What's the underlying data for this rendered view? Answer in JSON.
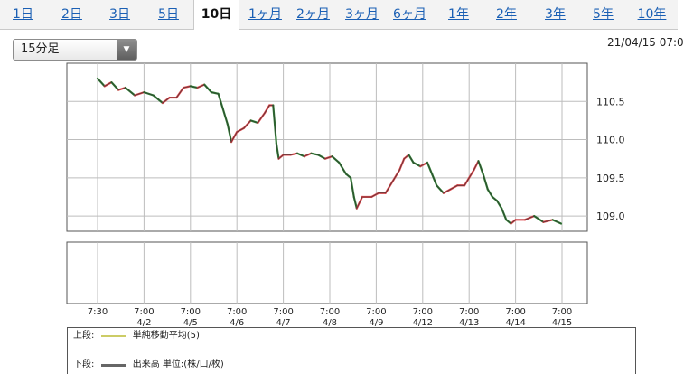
{
  "tabs": [
    {
      "label": "1日"
    },
    {
      "label": "2日"
    },
    {
      "label": "3日"
    },
    {
      "label": "5日"
    },
    {
      "label": "10日"
    },
    {
      "label": "1ヶ月"
    },
    {
      "label": "2ヶ月"
    },
    {
      "label": "3ヶ月"
    },
    {
      "label": "6ヶ月"
    },
    {
      "label": "1年"
    },
    {
      "label": "2年"
    },
    {
      "label": "3年"
    },
    {
      "label": "5年"
    },
    {
      "label": "10年"
    }
  ],
  "active_tab": "10日",
  "period_select": {
    "value": "15分足"
  },
  "timestamp": "21/04/15 07:0",
  "legend": {
    "upper_label": "上段:",
    "upper_text": "単純移動平均(5)",
    "upper_color": "#cccc66",
    "lower_label": "下段:",
    "lower_text": "出来高 単位:(株/口/枚)",
    "lower_color": "#666666"
  },
  "colors": {
    "up": "#e0474c",
    "down": "#2e7d32",
    "grid": "#bdbdbd",
    "frame": "#555555"
  },
  "chart_data": {
    "type": "line",
    "title": "",
    "ylim": [
      108.8,
      111.0
    ],
    "yticks": [
      "110.5",
      "110.0",
      "109.5",
      "109.0"
    ],
    "x_tick_labels": [
      {
        "time": "7:30",
        "date": ""
      },
      {
        "time": "7:00",
        "date": "4/2"
      },
      {
        "time": "7:00",
        "date": "4/5"
      },
      {
        "time": "7:00",
        "date": "4/6"
      },
      {
        "time": "7:00",
        "date": "4/7"
      },
      {
        "time": "7:00",
        "date": "4/8"
      },
      {
        "time": "7:00",
        "date": "4/9"
      },
      {
        "time": "7:00",
        "date": "4/12"
      },
      {
        "time": "7:00",
        "date": "4/13"
      },
      {
        "time": "7:00",
        "date": "4/14"
      },
      {
        "time": "7:00",
        "date": "4/15"
      }
    ],
    "series": [
      {
        "values": [
          [
            0.0,
            110.8
          ],
          [
            0.15,
            110.7
          ],
          [
            0.3,
            110.75
          ],
          [
            0.45,
            110.65
          ],
          [
            0.6,
            110.68
          ],
          [
            0.8,
            110.58
          ],
          [
            1.0,
            110.62
          ],
          [
            1.2,
            110.58
          ],
          [
            1.4,
            110.48
          ],
          [
            1.55,
            110.55
          ],
          [
            1.7,
            110.55
          ],
          [
            1.85,
            110.68
          ],
          [
            2.0,
            110.7
          ],
          [
            2.15,
            110.68
          ],
          [
            2.3,
            110.72
          ],
          [
            2.45,
            110.62
          ],
          [
            2.6,
            110.6
          ],
          [
            2.7,
            110.4
          ],
          [
            2.8,
            110.2
          ],
          [
            2.88,
            109.97
          ],
          [
            3.0,
            110.1
          ],
          [
            3.15,
            110.15
          ],
          [
            3.3,
            110.25
          ],
          [
            3.45,
            110.22
          ],
          [
            3.6,
            110.35
          ],
          [
            3.7,
            110.45
          ],
          [
            3.78,
            110.45
          ],
          [
            3.85,
            109.95
          ],
          [
            3.9,
            109.75
          ],
          [
            4.0,
            109.8
          ],
          [
            4.15,
            109.8
          ],
          [
            4.3,
            109.82
          ],
          [
            4.45,
            109.78
          ],
          [
            4.6,
            109.82
          ],
          [
            4.75,
            109.8
          ],
          [
            4.9,
            109.75
          ],
          [
            5.05,
            109.78
          ],
          [
            5.2,
            109.7
          ],
          [
            5.35,
            109.55
          ],
          [
            5.45,
            109.5
          ],
          [
            5.52,
            109.25
          ],
          [
            5.58,
            109.1
          ],
          [
            5.7,
            109.25
          ],
          [
            5.9,
            109.25
          ],
          [
            6.05,
            109.3
          ],
          [
            6.2,
            109.3
          ],
          [
            6.35,
            109.45
          ],
          [
            6.5,
            109.6
          ],
          [
            6.6,
            109.75
          ],
          [
            6.7,
            109.8
          ],
          [
            6.8,
            109.7
          ],
          [
            6.95,
            109.65
          ],
          [
            7.1,
            109.7
          ],
          [
            7.2,
            109.55
          ],
          [
            7.3,
            109.4
          ],
          [
            7.45,
            109.3
          ],
          [
            7.6,
            109.35
          ],
          [
            7.75,
            109.4
          ],
          [
            7.9,
            109.4
          ],
          [
            8.0,
            109.5
          ],
          [
            8.1,
            109.6
          ],
          [
            8.2,
            109.72
          ],
          [
            8.3,
            109.55
          ],
          [
            8.4,
            109.35
          ],
          [
            8.5,
            109.25
          ],
          [
            8.6,
            109.2
          ],
          [
            8.7,
            109.1
          ],
          [
            8.8,
            108.95
          ],
          [
            8.9,
            108.9
          ],
          [
            9.0,
            108.95
          ],
          [
            9.2,
            108.95
          ],
          [
            9.4,
            109.0
          ],
          [
            9.6,
            108.92
          ],
          [
            9.8,
            108.95
          ],
          [
            9.98,
            108.9
          ]
        ]
      }
    ]
  }
}
